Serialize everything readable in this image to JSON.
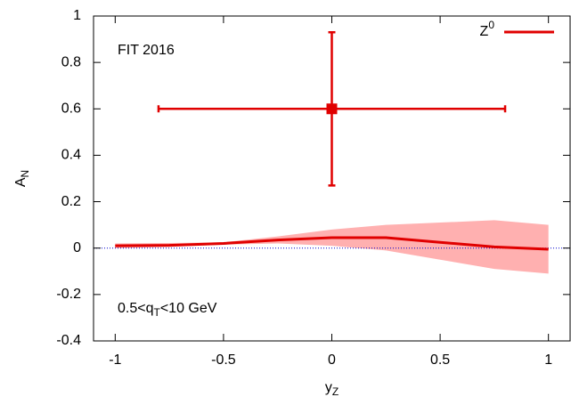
{
  "chart_data": {
    "type": "line",
    "x_label": {
      "main": "y",
      "sub": "Z"
    },
    "y_label": {
      "main": "A",
      "sub": "N"
    },
    "annotation": "FIT 2016",
    "kin_label": {
      "pre": "0.5<q",
      "sub": "T",
      "post": "<10 GeV"
    },
    "legend": {
      "main": "Z",
      "sup": "0"
    },
    "xlim": [
      -1.1,
      1.1
    ],
    "xticks": [
      -1,
      -0.5,
      0,
      0.5,
      1
    ],
    "ylim": [
      -0.4,
      1
    ],
    "yticks": [
      -0.4,
      -0.2,
      0,
      0.2,
      0.4,
      0.6,
      0.8,
      1
    ],
    "zero_line_color": "#0000cc",
    "x": [
      -1,
      -0.75,
      -0.5,
      -0.25,
      0,
      0.25,
      0.5,
      0.75,
      1
    ],
    "series": [
      {
        "color": "#e00000",
        "band_color": "#ffb0b0",
        "values": [
          0.01,
          0.012,
          0.02,
          0.035,
          0.045,
          0.045,
          0.025,
          0.005,
          -0.005
        ],
        "upper": [
          0.02,
          0.022,
          0.025,
          0.05,
          0.08,
          0.1,
          0.11,
          0.12,
          0.1
        ],
        "lower": [
          0.0,
          0.005,
          0.015,
          0.02,
          0.01,
          -0.01,
          -0.05,
          -0.09,
          -0.11
        ]
      }
    ],
    "points": {
      "color": "#e00000",
      "x": [
        0
      ],
      "y": [
        0.6
      ],
      "xerr": [
        0.8
      ],
      "yerr": [
        0.33
      ]
    }
  }
}
